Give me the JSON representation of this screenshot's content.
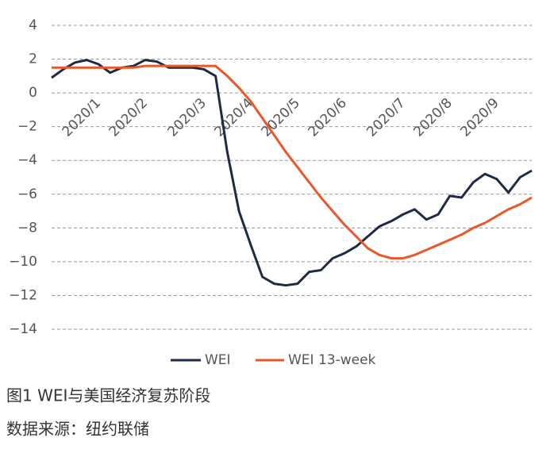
{
  "chart_data": {
    "type": "line",
    "categories": [
      null,
      null,
      null,
      null,
      "2020/1",
      null,
      null,
      null,
      "2020/2",
      null,
      null,
      null,
      null,
      "2020/3",
      null,
      null,
      null,
      "2020/4",
      null,
      null,
      null,
      "2020/5",
      null,
      null,
      null,
      "2020/6",
      null,
      null,
      null,
      null,
      "2020/7",
      null,
      null,
      null,
      "2020/8",
      null,
      null,
      null,
      "2020/9",
      null,
      null,
      null
    ],
    "series": [
      {
        "name": "WEI",
        "color": "#1f2a44",
        "values": [
          0.9,
          1.4,
          1.8,
          1.95,
          1.7,
          1.2,
          1.5,
          1.6,
          1.95,
          1.85,
          1.5,
          1.5,
          1.5,
          1.4,
          1.0,
          -3.5,
          -7.0,
          -9.0,
          -10.9,
          -11.3,
          -11.4,
          -11.3,
          -10.6,
          -10.5,
          -9.8,
          -9.5,
          -9.1,
          -8.5,
          -7.9,
          -7.6,
          -7.2,
          -6.9,
          -7.5,
          -7.2,
          -6.1,
          -6.2,
          -5.3,
          -4.8,
          -5.1,
          -5.9,
          -5.0,
          -4.6
        ]
      },
      {
        "name": "WEI 13-week",
        "color": "#e8582a",
        "values": [
          1.5,
          1.5,
          1.5,
          1.5,
          1.5,
          1.5,
          1.5,
          1.5,
          1.6,
          1.6,
          1.6,
          1.6,
          1.6,
          1.6,
          1.6,
          1.0,
          0.3,
          -0.5,
          -1.5,
          -2.5,
          -3.5,
          -4.4,
          -5.3,
          -6.2,
          -7.0,
          -7.8,
          -8.5,
          -9.2,
          -9.6,
          -9.8,
          -9.8,
          -9.6,
          -9.3,
          -9.0,
          -8.7,
          -8.4,
          -8.0,
          -7.7,
          -7.3,
          -6.9,
          -6.6,
          -6.2
        ]
      }
    ],
    "ylim": [
      -14,
      4
    ],
    "yticks": [
      4,
      2,
      0,
      {
        "value": -2,
        "label": "−2"
      },
      {
        "value": -4,
        "label": "−4"
      },
      {
        "value": -6,
        "label": "−6"
      },
      {
        "value": -8,
        "label": "−8"
      },
      {
        "value": -10,
        "label": "−10"
      },
      {
        "value": -12,
        "label": "−12"
      },
      {
        "value": -14,
        "label": "−14"
      }
    ],
    "grid": true,
    "legend": "bottom",
    "caption": "图1 WEI与美国经济复苏阶段",
    "source": "数据来源：纽约联储"
  }
}
